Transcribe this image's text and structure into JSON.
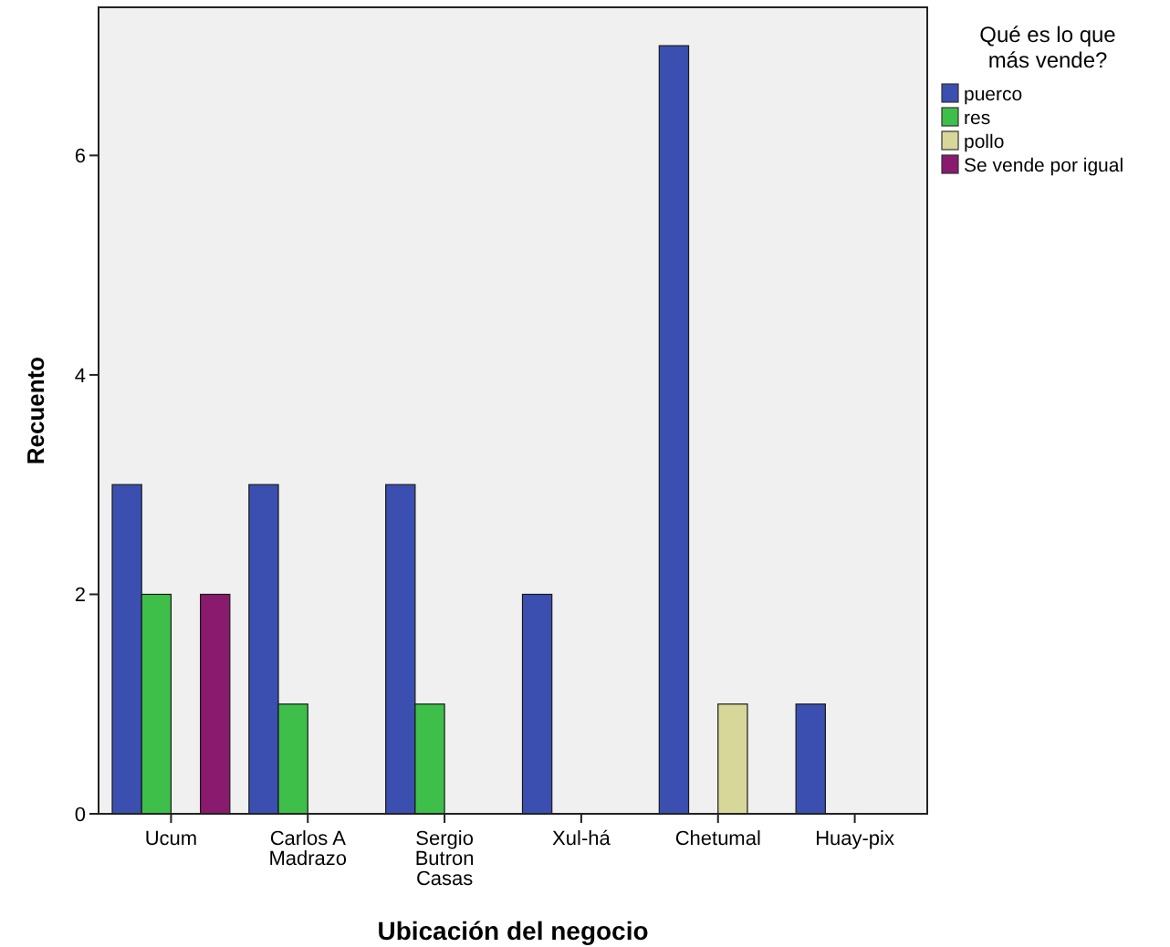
{
  "chart_data": {
    "type": "bar",
    "xlabel": "Ubicación del negocio",
    "ylabel": "Recuento",
    "legend_title": "Qué es lo que más vende?",
    "legend": "top right",
    "grid": false,
    "categories": [
      "Ucum",
      "Carlos A Madrazo",
      "Sergio Butron Casas",
      "Xul-há",
      "Chetumal",
      "Huay-pix"
    ],
    "ylim": [
      0,
      7.35
    ],
    "yticks": [
      0,
      2,
      4,
      6
    ],
    "series": [
      {
        "name": "puerco",
        "color": "#3a4fb0",
        "values": [
          3,
          3,
          3,
          2,
          7,
          1
        ]
      },
      {
        "name": "res",
        "color": "#3dbf4a",
        "values": [
          2,
          1,
          1,
          null,
          null,
          null
        ]
      },
      {
        "name": "pollo",
        "color": "#d8d79a",
        "values": [
          null,
          null,
          null,
          null,
          1,
          null
        ]
      },
      {
        "name": "Se vende por igual",
        "color": "#8a1a6e",
        "values": [
          2,
          null,
          null,
          null,
          null,
          null
        ]
      }
    ]
  }
}
